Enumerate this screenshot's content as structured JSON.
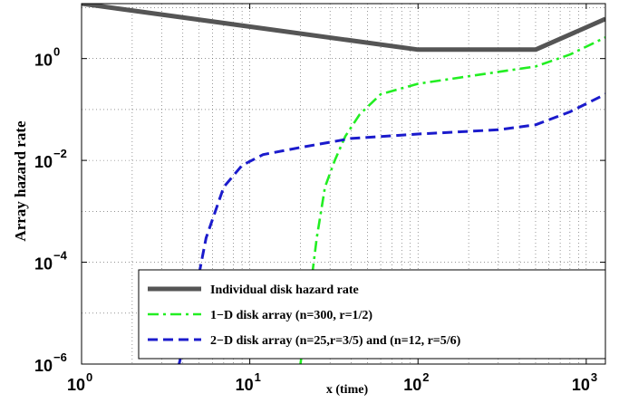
{
  "chart_data": {
    "type": "line",
    "xscale": "log",
    "yscale": "log",
    "xlim": [
      1,
      1300
    ],
    "ylim": [
      1e-06,
      12
    ],
    "xlabel": "x (time)",
    "ylabel": "Array hazard rate",
    "x_ticks": [
      {
        "value": 1,
        "base": "10",
        "exp": "0"
      },
      {
        "value": 10,
        "base": "10",
        "exp": "1"
      },
      {
        "value": 100,
        "base": "10",
        "exp": "2"
      },
      {
        "value": 1000,
        "base": "10",
        "exp": "3"
      }
    ],
    "y_ticks": [
      {
        "value": 1e-06,
        "base": "10",
        "exp": "−6"
      },
      {
        "value": 0.0001,
        "base": "10",
        "exp": "−4"
      },
      {
        "value": 0.01,
        "base": "10",
        "exp": "−2"
      },
      {
        "value": 1,
        "base": "10",
        "exp": "0"
      }
    ],
    "grid": true,
    "legend_position": "bottom-right",
    "series": [
      {
        "name": "Individual disk hazard rate",
        "color": "#555555",
        "style": "solid",
        "points": [
          [
            1,
            12
          ],
          [
            100,
            1.5
          ],
          [
            500,
            1.5
          ],
          [
            1300,
            6
          ]
        ]
      },
      {
        "name": "1−D disk array (n=300, r=1/2)",
        "color": "#22ee22",
        "style": "dashdot",
        "points": [
          [
            20,
            1e-06
          ],
          [
            22,
            1e-05
          ],
          [
            25,
            0.0003
          ],
          [
            28,
            0.003
          ],
          [
            32,
            0.01
          ],
          [
            37,
            0.03
          ],
          [
            45,
            0.08
          ],
          [
            60,
            0.2
          ],
          [
            100,
            0.32
          ],
          [
            200,
            0.45
          ],
          [
            500,
            0.7
          ],
          [
            800,
            1.2
          ],
          [
            1300,
            2.6
          ]
        ]
      },
      {
        "name": "2−D disk array (n=25,r=3/5) and (n=12, r=5/6)",
        "color": "#1b1bcc",
        "style": "dashed",
        "points": [
          [
            3.8,
            1e-06
          ],
          [
            4.5,
            1e-05
          ],
          [
            5.5,
            0.0003
          ],
          [
            7,
            0.003
          ],
          [
            9,
            0.008
          ],
          [
            12,
            0.013
          ],
          [
            20,
            0.018
          ],
          [
            40,
            0.027
          ],
          [
            100,
            0.033
          ],
          [
            300,
            0.04
          ],
          [
            500,
            0.05
          ],
          [
            800,
            0.09
          ],
          [
            1300,
            0.2
          ]
        ]
      }
    ]
  }
}
